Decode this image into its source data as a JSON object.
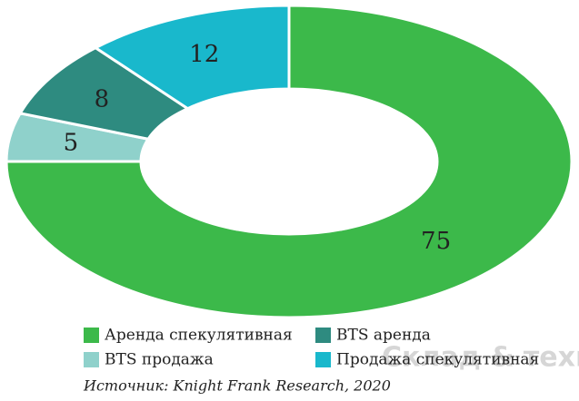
{
  "chart_data": {
    "type": "donut",
    "categories": [
      "Аренда спекулятивная",
      "BTS продажа",
      "BTS аренда",
      "Продажа спекулятивная"
    ],
    "values": [
      75,
      5,
      8,
      12
    ],
    "colors": [
      "#3cb94a",
      "#8fd1cb",
      "#2e8b80",
      "#19b8cc"
    ],
    "source": "Источник: Knight Frank Research, 2020"
  },
  "watermark": "Склад & техника"
}
